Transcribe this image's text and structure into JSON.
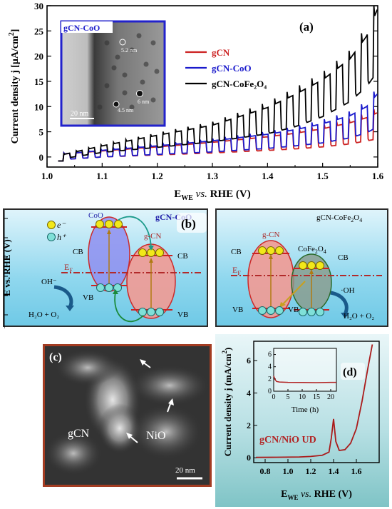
{
  "panel_a": {
    "label": "(a)",
    "inset_label": "gCN-CoO",
    "inset_scalebar": "20 nm",
    "inset_annotations": [
      "5.2 nm",
      "6 nm",
      "4.5 nm"
    ]
  },
  "panel_b": {
    "label": "(b)",
    "left": {
      "title": "gCN-CoO",
      "legend_e": "e⁻",
      "legend_h": "h⁺",
      "coo": "CoO",
      "gcn": "g-CN",
      "cb_left": "CB",
      "cb_right": "CB",
      "vb_left": "VB",
      "vb_right": "VB",
      "ef": "E",
      "ef_sub": "F",
      "oh": "OH⁻",
      "product": "H₂O + O₂"
    },
    "right": {
      "title_main": "gCN-CoFe",
      "title_sub1": "2",
      "title_o": "O",
      "title_sub2": "4",
      "gcn": "g-CN",
      "cofe": "CoFe",
      "cofe_sub1": "2",
      "cofe_o": "O",
      "cofe_sub2": "4",
      "cb_left": "CB",
      "cb_right": "CB",
      "vb_left": "VB",
      "vb_right": "VB",
      "ef": "E",
      "ef_sub": "F",
      "oh": "·OH",
      "product": "H₂O + O₂"
    },
    "yaxis_label": "E vs. RHE (V)",
    "yticks": [
      "-2",
      "-1",
      "0",
      "1",
      "2",
      "3"
    ]
  },
  "panel_c": {
    "label": "(c)",
    "gcn": "gCN",
    "nio": "NiO",
    "scalebar": "20 nm"
  },
  "panel_d": {
    "label": "(d)",
    "annotation": "gCN/NiO UD"
  },
  "chart_data": [
    {
      "type": "line",
      "panel": "a",
      "xlabel": "E_WE vs. RHE (V)",
      "ylabel": "Current density j [μA/cm²]",
      "xlim": [
        1.0,
        1.6
      ],
      "ylim": [
        -2,
        30
      ],
      "xticks": [
        1.0,
        1.1,
        1.2,
        1.3,
        1.4,
        1.5,
        1.6
      ],
      "yticks": [
        0,
        5,
        10,
        15,
        20,
        25,
        30
      ],
      "legend_position": "center-right",
      "chopped_light": true,
      "series": [
        {
          "name": "gCN",
          "color": "#cc2222",
          "x": [
            1.03,
            1.1,
            1.2,
            1.3,
            1.4,
            1.45,
            1.5,
            1.55,
            1.58,
            1.6
          ],
          "light": [
            0.6,
            1.2,
            2.0,
            2.9,
            4.0,
            4.7,
            5.6,
            6.8,
            7.8,
            8.8
          ],
          "dark": [
            -0.5,
            0.0,
            0.4,
            0.8,
            1.3,
            1.6,
            2.0,
            2.6,
            3.2,
            3.6
          ]
        },
        {
          "name": "gCN-CoO",
          "color": "#1a1acc",
          "x": [
            1.03,
            1.1,
            1.2,
            1.3,
            1.4,
            1.45,
            1.5,
            1.55,
            1.58,
            1.6
          ],
          "light": [
            0.6,
            1.3,
            2.2,
            3.2,
            4.5,
            5.4,
            6.6,
            8.2,
            10.0,
            12.6
          ],
          "dark": [
            -0.5,
            0.0,
            0.5,
            1.0,
            1.7,
            2.2,
            2.8,
            3.8,
            4.8,
            6.0
          ]
        },
        {
          "name": "gCN-CoFe₂O₄",
          "color": "#000000",
          "x": [
            1.03,
            1.1,
            1.2,
            1.3,
            1.4,
            1.45,
            1.5,
            1.55,
            1.58,
            1.6
          ],
          "light": [
            0.5,
            2.2,
            4.3,
            6.3,
            9.8,
            12.4,
            15.3,
            19.5,
            24.0,
            29.5
          ],
          "dark": [
            -0.3,
            0.9,
            1.9,
            3.0,
            4.6,
            6.0,
            8.0,
            11.0,
            14.0,
            17.0
          ]
        }
      ]
    },
    {
      "type": "line",
      "panel": "d",
      "xlabel": "E_WE vs. RHE (V)",
      "ylabel": "Current density j (mA/cm²)",
      "xlim": [
        0.7,
        1.8
      ],
      "ylim": [
        -0.3,
        7.2
      ],
      "xticks": [
        0.8,
        1.0,
        1.2,
        1.4,
        1.6
      ],
      "yticks": [
        0,
        2,
        4,
        6
      ],
      "series": [
        {
          "name": "gCN/NiO UD",
          "color": "#aa1a1a",
          "x": [
            0.72,
            0.9,
            1.1,
            1.2,
            1.3,
            1.36,
            1.38,
            1.4,
            1.42,
            1.45,
            1.5,
            1.55,
            1.6,
            1.65,
            1.7,
            1.74
          ],
          "y": [
            0.02,
            0.03,
            0.05,
            0.08,
            0.15,
            0.35,
            1.2,
            2.4,
            1.0,
            0.45,
            0.5,
            0.9,
            1.8,
            3.5,
            5.5,
            7.0
          ]
        }
      ],
      "inset": {
        "xlabel": "Time (h)",
        "xlim": [
          0,
          22
        ],
        "ylim": [
          0,
          7
        ],
        "xticks": [
          0,
          5,
          10,
          15,
          20
        ],
        "yticks": [
          0,
          2,
          4,
          6
        ],
        "x": [
          0,
          0.5,
          1,
          2,
          5,
          10,
          15,
          20,
          22
        ],
        "y": [
          2.5,
          1.9,
          1.6,
          1.5,
          1.45,
          1.42,
          1.4,
          1.45,
          1.45
        ]
      }
    }
  ]
}
